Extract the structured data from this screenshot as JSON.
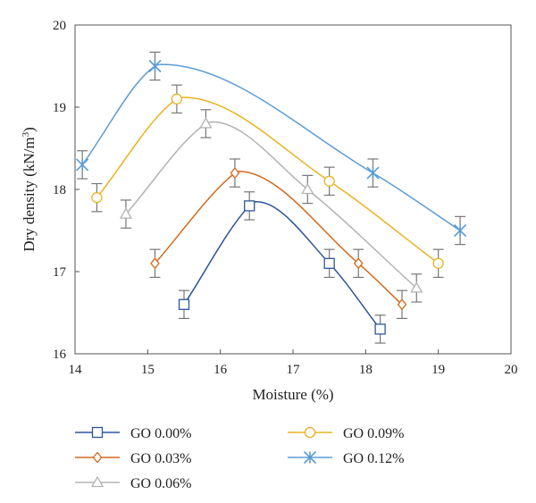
{
  "chart_data": {
    "type": "line",
    "title": "",
    "xlabel": "Moisture (%)",
    "ylabel_main": "Dry density (kN/m",
    "ylabel_sup": "3",
    "ylabel_close": ")",
    "xlim": [
      14,
      20
    ],
    "ylim": [
      16,
      20
    ],
    "xticks": [
      "14",
      "15",
      "16",
      "17",
      "18",
      "19",
      "20"
    ],
    "yticks": [
      "16",
      "17",
      "18",
      "19",
      "20"
    ],
    "grid": false,
    "legend_position": "bottom",
    "error_bar": 0.17,
    "series": [
      {
        "name": "GO 0.00%",
        "color": "#2e5597",
        "marker": "square",
        "points": [
          [
            15.5,
            16.6
          ],
          [
            16.4,
            17.8
          ],
          [
            17.5,
            17.1
          ],
          [
            18.2,
            16.3
          ]
        ],
        "peak": [
          16.5,
          17.85
        ]
      },
      {
        "name": "GO 0.03%",
        "color": "#d2691e",
        "marker": "diamond",
        "points": [
          [
            15.1,
            17.1
          ],
          [
            16.2,
            18.2
          ],
          [
            17.9,
            17.1
          ],
          [
            18.5,
            16.6
          ]
        ],
        "peak": [
          16.25,
          18.22
        ]
      },
      {
        "name": "GO 0.06%",
        "color": "#b3b3b3",
        "marker": "triangle",
        "points": [
          [
            14.7,
            17.7
          ],
          [
            15.8,
            18.8
          ],
          [
            17.2,
            18.0
          ],
          [
            18.7,
            16.8
          ]
        ],
        "peak": [
          15.9,
          18.82
        ]
      },
      {
        "name": "GO 0.09%",
        "color": "#e9b321",
        "marker": "circle",
        "points": [
          [
            14.3,
            17.9
          ],
          [
            15.4,
            19.1
          ],
          [
            17.5,
            18.1
          ],
          [
            19.0,
            17.1
          ]
        ],
        "peak": [
          15.5,
          19.12
        ]
      },
      {
        "name": "GO 0.12%",
        "color": "#5b9bd5",
        "marker": "asterisk",
        "points": [
          [
            14.1,
            18.3
          ],
          [
            15.1,
            19.5
          ],
          [
            18.1,
            18.2
          ],
          [
            19.3,
            17.5
          ]
        ],
        "peak": [
          15.2,
          19.52
        ]
      }
    ]
  }
}
